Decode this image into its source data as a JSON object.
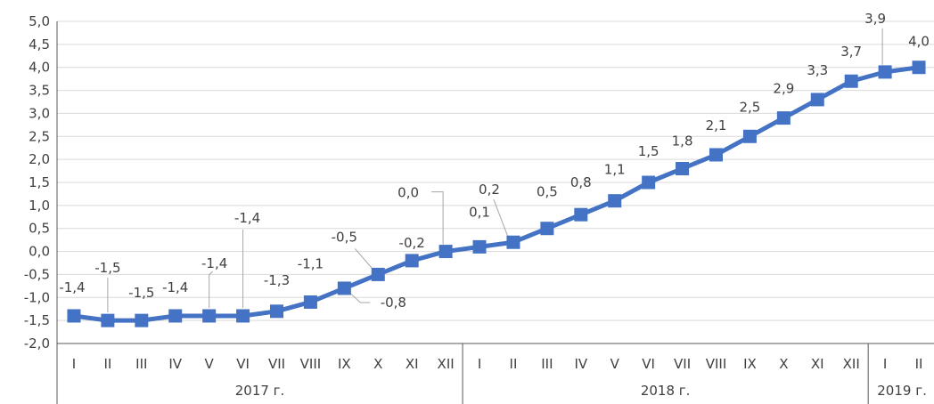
{
  "chart_data": {
    "type": "line",
    "title": "",
    "xlabel": "",
    "ylabel": "",
    "ylim": [
      -2.0,
      5.0
    ],
    "ytick_step": 0.5,
    "grid": "horizontal",
    "legend": "none",
    "line_color": "#4472C4",
    "marker": "square",
    "categories": [
      "I",
      "II",
      "III",
      "IV",
      "V",
      "VI",
      "VII",
      "VIII",
      "IX",
      "X",
      "XI",
      "XII",
      "I",
      "II",
      "III",
      "IV",
      "V",
      "VI",
      "VII",
      "VIII",
      "IX",
      "X",
      "XI",
      "XII",
      "I",
      "II"
    ],
    "year_groups": [
      {
        "label": "2017 г.",
        "count": 12
      },
      {
        "label": "2018 г.",
        "count": 12
      },
      {
        "label": "2019 г.",
        "count": 2
      }
    ],
    "series": [
      {
        "values": [
          -1.4,
          -1.5,
          -1.5,
          -1.4,
          -1.4,
          -1.4,
          -1.3,
          -1.1,
          -0.8,
          -0.5,
          -0.2,
          0.0,
          0.1,
          0.2,
          0.5,
          0.8,
          1.1,
          1.5,
          1.8,
          2.1,
          2.5,
          2.9,
          3.3,
          3.7,
          3.9,
          4.0
        ],
        "labels": [
          "-1,4",
          "-1,5",
          "-1,5",
          "-1,4",
          "-1,4",
          "-1,4",
          "-1,3",
          "-1,1",
          "-0,8",
          "-0,5",
          "-0,2",
          "0,0",
          "0,1",
          "0,2",
          "0,5",
          "0,8",
          "1,1",
          "1,5",
          "1,8",
          "2,1",
          "2,5",
          "2,9",
          "3,3",
          "3,7",
          "3,9",
          "4,0"
        ]
      }
    ]
  }
}
